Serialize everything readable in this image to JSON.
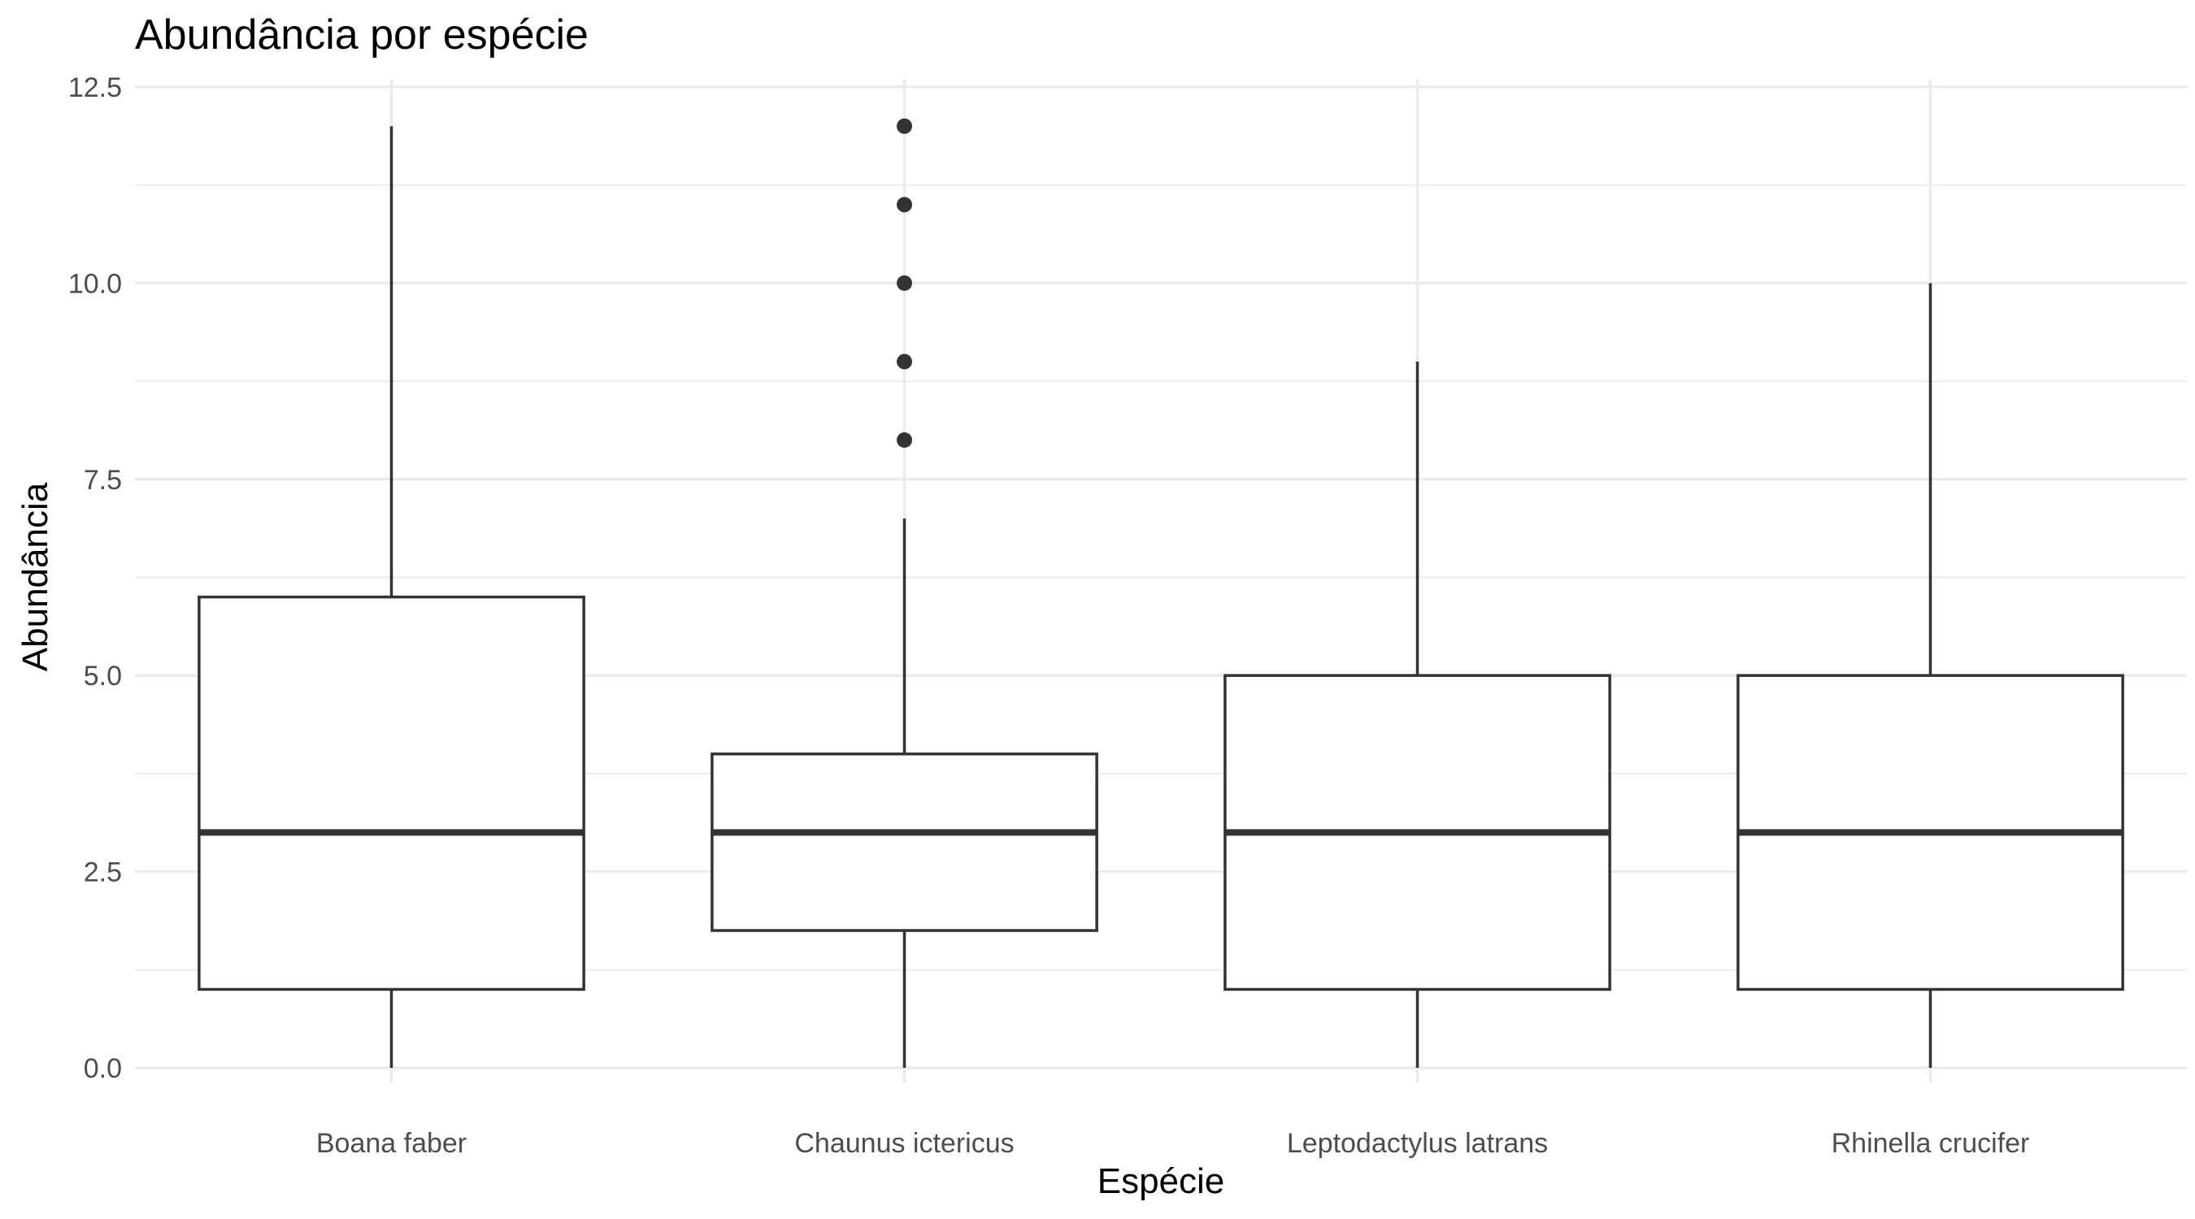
{
  "chart_data": {
    "type": "boxplot",
    "title": "Abundância por espécie",
    "xlabel": "Espécie",
    "ylabel": "Abundância",
    "ylim": [
      0,
      12.5
    ],
    "y_ticks": [
      "0.0",
      "2.5",
      "5.0",
      "7.5",
      "10.0",
      "12.5"
    ],
    "y_tick_values": [
      0,
      2.5,
      5,
      7.5,
      10,
      12.5
    ],
    "y_minor_values": [
      1.25,
      3.75,
      6.25,
      8.75,
      11.25
    ],
    "grid": true,
    "colors": {
      "box_line": "#333333",
      "grid": "#ebebeb",
      "tick_text": "#4d4d4d"
    },
    "categories": [
      "Boana faber",
      "Chaunus ictericus",
      "Leptodactylus latrans",
      "Rhinella crucifer"
    ],
    "boxes": [
      {
        "category": "Boana faber",
        "whisker_low": 0,
        "q1": 1,
        "median": 3,
        "q3": 6,
        "whisker_high": 12,
        "outliers": []
      },
      {
        "category": "Chaunus ictericus",
        "whisker_low": 0,
        "q1": 1.75,
        "median": 3,
        "q3": 4,
        "whisker_high": 7,
        "outliers": [
          8,
          9,
          10,
          11,
          12
        ]
      },
      {
        "category": "Leptodactylus latrans",
        "whisker_low": 0,
        "q1": 1,
        "median": 3,
        "q3": 5,
        "whisker_high": 9,
        "outliers": []
      },
      {
        "category": "Rhinella crucifer",
        "whisker_low": 0,
        "q1": 1,
        "median": 3,
        "q3": 5,
        "whisker_high": 10,
        "outliers": []
      }
    ]
  }
}
